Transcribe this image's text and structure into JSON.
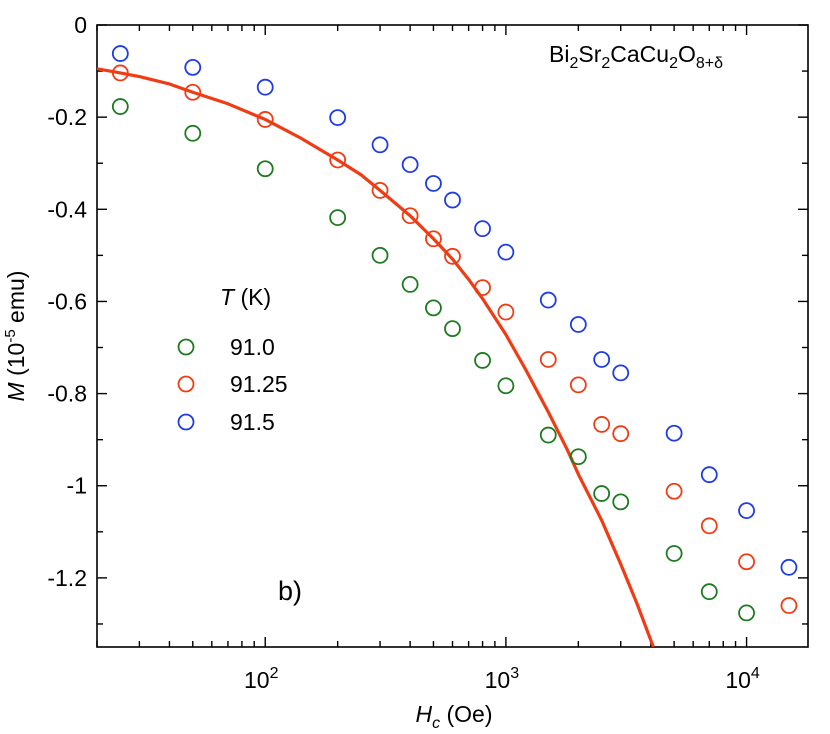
{
  "chart_data": {
    "type": "scatter",
    "xscale": "log",
    "xlim": [
      20,
      18000
    ],
    "ylim": [
      -1.35,
      0
    ],
    "xlabel": {
      "main": "H",
      "sub": "c",
      "unit": " (Oe)"
    },
    "ylabel": {
      "main": "M",
      "pre": " (10",
      "exp": "-5",
      "unit": " emu)"
    },
    "xticks": [
      {
        "value": 100,
        "base": "10",
        "exp": "2"
      },
      {
        "value": 1000,
        "base": "10",
        "exp": "3"
      },
      {
        "value": 10000,
        "base": "10",
        "exp": "4"
      }
    ],
    "yticks": [
      {
        "value": 0,
        "label": "0"
      },
      {
        "value": -0.2,
        "label": "-0.2"
      },
      {
        "value": -0.4,
        "label": "-0.4"
      },
      {
        "value": -0.6,
        "label": "-0.6"
      },
      {
        "value": -0.8,
        "label": "-0.8"
      },
      {
        "value": -1.0,
        "label": "-1"
      },
      {
        "value": -1.2,
        "label": "-1.2"
      }
    ],
    "compound": [
      "Bi",
      "2",
      "Sr",
      "2",
      "CaCu",
      "2",
      "O",
      "8+δ"
    ],
    "panel_label": "b)",
    "legend": {
      "title_main": "T",
      "title_unit": " (K)",
      "placement": "center-left"
    },
    "series": [
      {
        "name": "91.0",
        "color": "#1e7a1e",
        "x": [
          25,
          50,
          100,
          200,
          300,
          400,
          500,
          600,
          800,
          1000,
          1500,
          2000,
          2500,
          3000,
          5000,
          7000,
          10000
        ],
        "y": [
          -0.177,
          -0.235,
          -0.312,
          -0.418,
          -0.5,
          -0.563,
          -0.614,
          -0.659,
          -0.728,
          -0.783,
          -0.89,
          -0.937,
          -1.017,
          -1.035,
          -1.147,
          -1.23,
          -1.276
        ]
      },
      {
        "name": "91.25",
        "color": "#f03c14",
        "x": [
          25,
          50,
          100,
          200,
          300,
          400,
          500,
          600,
          800,
          1000,
          1500,
          2000,
          2500,
          3000,
          5000,
          7000,
          10000,
          15000
        ],
        "y": [
          -0.104,
          -0.146,
          -0.205,
          -0.293,
          -0.359,
          -0.414,
          -0.464,
          -0.502,
          -0.57,
          -0.623,
          -0.726,
          -0.781,
          -0.867,
          -0.887,
          -1.012,
          -1.087,
          -1.165,
          -1.26
        ]
      },
      {
        "name": "91.5",
        "color": "#1e3ce6",
        "x": [
          25,
          50,
          100,
          200,
          300,
          400,
          500,
          600,
          800,
          1000,
          1500,
          2000,
          2500,
          3000,
          5000,
          7000,
          10000,
          15000
        ],
        "y": [
          -0.062,
          -0.092,
          -0.135,
          -0.201,
          -0.26,
          -0.303,
          -0.344,
          -0.38,
          -0.442,
          -0.493,
          -0.597,
          -0.65,
          -0.726,
          -0.755,
          -0.886,
          -0.976,
          -1.054,
          -1.177
        ]
      }
    ],
    "fit_curve": {
      "color": "#f03c14",
      "x": [
        20,
        25,
        30,
        40,
        50,
        70,
        100,
        140,
        200,
        250,
        300,
        400,
        500,
        600,
        700,
        800,
        1000,
        1200,
        1500,
        1800,
        2000,
        2500,
        3000,
        3500,
        4100
      ],
      "y": [
        -0.095,
        -0.104,
        -0.112,
        -0.128,
        -0.146,
        -0.171,
        -0.205,
        -0.245,
        -0.293,
        -0.325,
        -0.359,
        -0.414,
        -0.464,
        -0.508,
        -0.552,
        -0.594,
        -0.672,
        -0.745,
        -0.84,
        -0.922,
        -0.975,
        -1.075,
        -1.17,
        -1.255,
        -1.35
      ]
    }
  }
}
